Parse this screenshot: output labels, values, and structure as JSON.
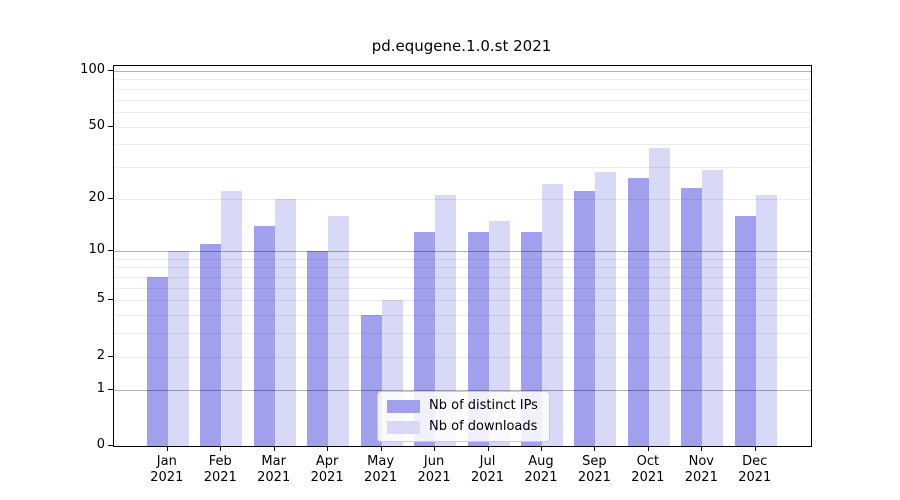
{
  "figure": {
    "background": "#ffffff"
  },
  "chart_data": {
    "type": "bar",
    "title": "pd.equgene.1.0.st 2021",
    "categories": [
      "Jan 2021",
      "Feb 2021",
      "Mar 2021",
      "Apr 2021",
      "May 2021",
      "Jun 2021",
      "Jul 2021",
      "Aug 2021",
      "Sep 2021",
      "Oct 2021",
      "Nov 2021",
      "Dec 2021"
    ],
    "series": [
      {
        "name": "Nb of distinct IPs",
        "color": "#a0a0ed",
        "values": [
          7,
          11,
          14,
          10,
          4,
          13,
          13,
          13,
          22,
          26,
          23,
          16
        ]
      },
      {
        "name": "Nb of downloads",
        "color": "#d8d8f7",
        "values": [
          10,
          22,
          20,
          16,
          5,
          21,
          15,
          24,
          28,
          38,
          29,
          21
        ]
      }
    ],
    "yscale": "log1p",
    "ylim": [
      0,
      100
    ],
    "yticks": [
      0,
      1,
      2,
      5,
      10,
      20,
      50,
      100
    ],
    "ytick_major_grid": [
      1,
      10,
      100
    ],
    "ytick_minor_grid": [
      2,
      3,
      4,
      5,
      6,
      7,
      8,
      9,
      20,
      30,
      40,
      50,
      60,
      70,
      80,
      90
    ],
    "grid": "on",
    "legend_position": "lower-center"
  },
  "colors": {
    "axis": "#000000",
    "text": "#000000",
    "grid_major": "#b3b3b3",
    "grid_minor": "#ebebeb",
    "legend_border": "#cccccc"
  }
}
